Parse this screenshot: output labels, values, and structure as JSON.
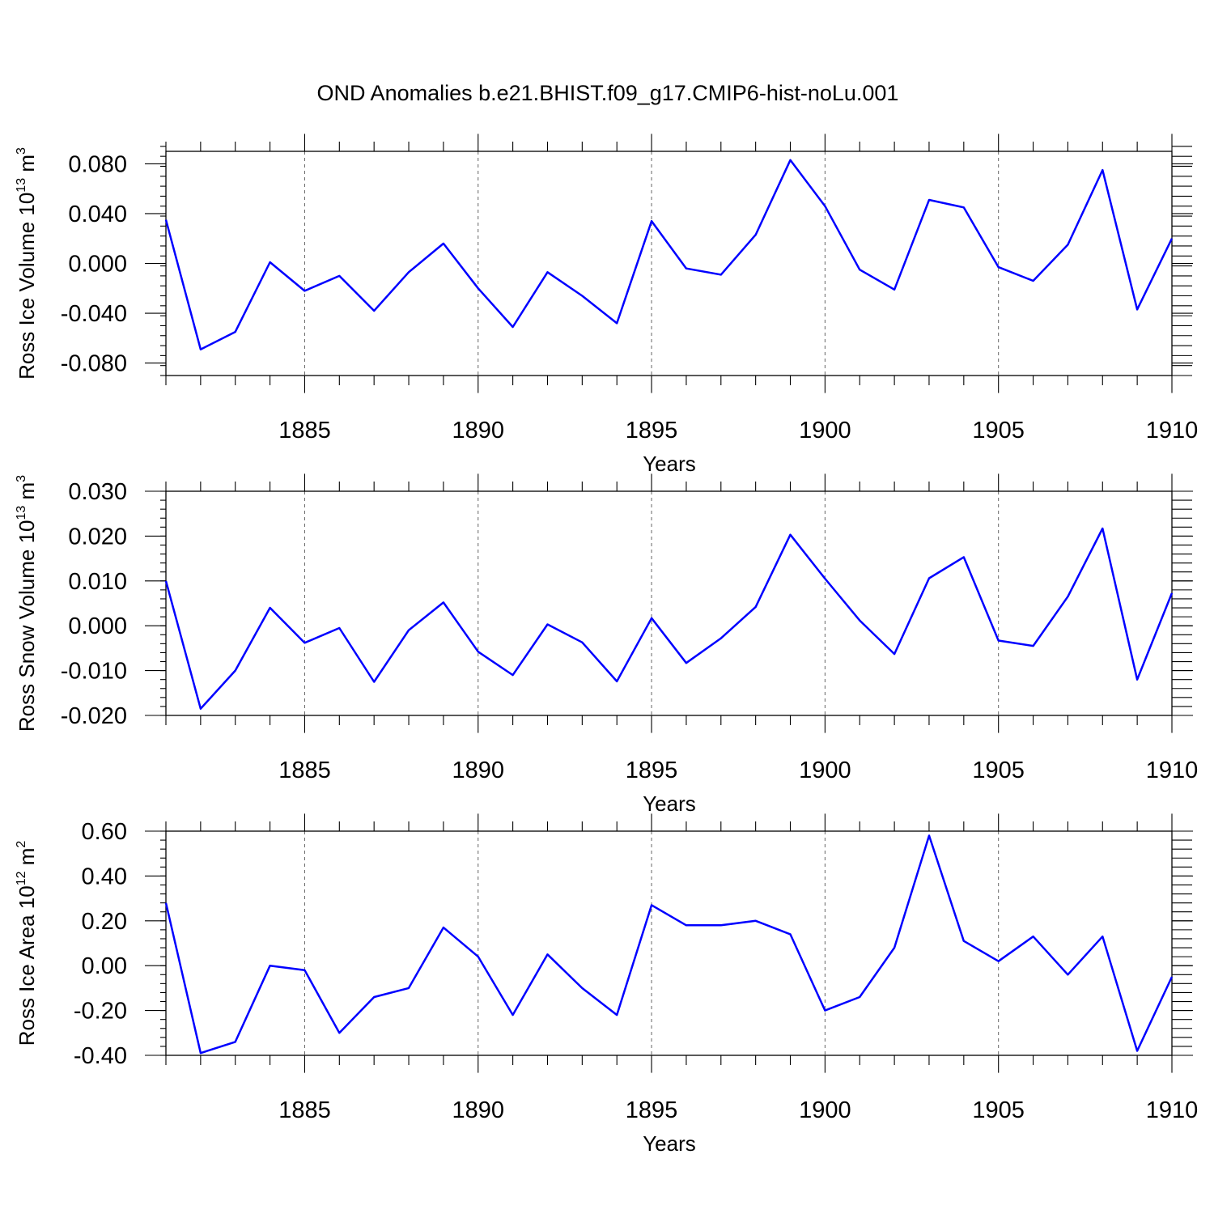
{
  "figure": {
    "title": "OND Anomalies b.e21.BHIST.f09_g17.CMIP6-hist-noLu.001",
    "line_color": "#0000ff"
  },
  "chart_data": [
    {
      "type": "line",
      "ylabel_main": "Ross Ice Volume 10",
      "ylabel_exp": "13",
      "ylabel_unit": " m",
      "ylabel_unit_exp": "3",
      "xlabel": "Years",
      "xlim": [
        1881,
        1910
      ],
      "ylim": [
        -0.09,
        0.09
      ],
      "yticks": [
        -0.08,
        -0.04,
        0.0,
        0.04,
        0.08
      ],
      "ytick_labels": [
        "-0.080",
        "-0.040",
        "0.000",
        "0.040",
        "0.080"
      ],
      "y_minor_step": 0.008,
      "xticks": [
        1885,
        1890,
        1895,
        1900,
        1905,
        1910
      ],
      "xtick_labels": [
        "1885",
        "1890",
        "1895",
        "1900",
        "1905",
        "1910"
      ],
      "grid": "vertical-dashed",
      "x": [
        1881,
        1882,
        1883,
        1884,
        1885,
        1886,
        1887,
        1888,
        1889,
        1890,
        1891,
        1892,
        1893,
        1894,
        1895,
        1896,
        1897,
        1898,
        1899,
        1900,
        1901,
        1902,
        1903,
        1904,
        1905,
        1906,
        1907,
        1908,
        1909,
        1910
      ],
      "values": [
        0.035,
        -0.069,
        -0.055,
        0.001,
        -0.022,
        -0.01,
        -0.038,
        -0.007,
        0.016,
        -0.02,
        -0.051,
        -0.007,
        -0.026,
        -0.048,
        0.034,
        -0.004,
        -0.009,
        0.023,
        0.083,
        0.046,
        -0.005,
        -0.021,
        0.051,
        0.045,
        -0.003,
        -0.014,
        0.015,
        0.075,
        -0.037,
        0.02
      ]
    },
    {
      "type": "line",
      "ylabel_main": "Ross Snow Volume 10",
      "ylabel_exp": "13",
      "ylabel_unit": " m",
      "ylabel_unit_exp": "3",
      "xlabel": "Years",
      "xlim": [
        1881,
        1910
      ],
      "ylim": [
        -0.02,
        0.03
      ],
      "yticks": [
        -0.02,
        -0.01,
        0.0,
        0.01,
        0.02,
        0.03
      ],
      "ytick_labels": [
        "-0.020",
        "-0.010",
        "0.000",
        "0.010",
        "0.020",
        "0.030"
      ],
      "y_minor_step": 0.002,
      "xticks": [
        1885,
        1890,
        1895,
        1900,
        1905,
        1910
      ],
      "xtick_labels": [
        "1885",
        "1890",
        "1895",
        "1900",
        "1905",
        "1910"
      ],
      "grid": "vertical-dashed",
      "x": [
        1881,
        1882,
        1883,
        1884,
        1885,
        1886,
        1887,
        1888,
        1889,
        1890,
        1891,
        1892,
        1893,
        1894,
        1895,
        1896,
        1897,
        1898,
        1899,
        1900,
        1901,
        1902,
        1903,
        1904,
        1905,
        1906,
        1907,
        1908,
        1909,
        1910
      ],
      "values": [
        0.01,
        -0.0185,
        -0.01,
        0.004,
        -0.0038,
        -0.0005,
        -0.0125,
        -0.001,
        0.0052,
        -0.0058,
        -0.011,
        0.0003,
        -0.0037,
        -0.0124,
        0.0017,
        -0.0083,
        -0.0028,
        0.0042,
        0.0203,
        0.0105,
        0.0012,
        -0.0063,
        0.0106,
        0.0153,
        -0.0033,
        -0.0045,
        0.0065,
        0.0217,
        -0.012,
        0.0073
      ]
    },
    {
      "type": "line",
      "ylabel_main": "Ross Ice Area 10",
      "ylabel_exp": "12",
      "ylabel_unit": " m",
      "ylabel_unit_exp": "2",
      "xlabel": "Years",
      "xlim": [
        1881,
        1910
      ],
      "ylim": [
        -0.4,
        0.6
      ],
      "yticks": [
        -0.4,
        -0.2,
        0.0,
        0.2,
        0.4,
        0.6
      ],
      "ytick_labels": [
        "-0.40",
        "-0.20",
        "0.00",
        "0.20",
        "0.40",
        "0.60"
      ],
      "y_minor_step": 0.04,
      "xticks": [
        1885,
        1890,
        1895,
        1900,
        1905,
        1910
      ],
      "xtick_labels": [
        "1885",
        "1890",
        "1895",
        "1900",
        "1905",
        "1910"
      ],
      "grid": "vertical-dashed",
      "x": [
        1881,
        1882,
        1883,
        1884,
        1885,
        1886,
        1887,
        1888,
        1889,
        1890,
        1891,
        1892,
        1893,
        1894,
        1895,
        1896,
        1897,
        1898,
        1899,
        1900,
        1901,
        1902,
        1903,
        1904,
        1905,
        1906,
        1907,
        1908,
        1909,
        1910
      ],
      "values": [
        0.28,
        -0.39,
        -0.34,
        0.0,
        -0.02,
        -0.3,
        -0.14,
        -0.1,
        0.17,
        0.04,
        -0.22,
        0.05,
        -0.1,
        -0.22,
        0.27,
        0.18,
        0.18,
        0.2,
        0.14,
        -0.2,
        -0.14,
        0.08,
        0.58,
        0.11,
        0.02,
        0.13,
        -0.04,
        0.13,
        -0.38,
        -0.05
      ]
    }
  ]
}
